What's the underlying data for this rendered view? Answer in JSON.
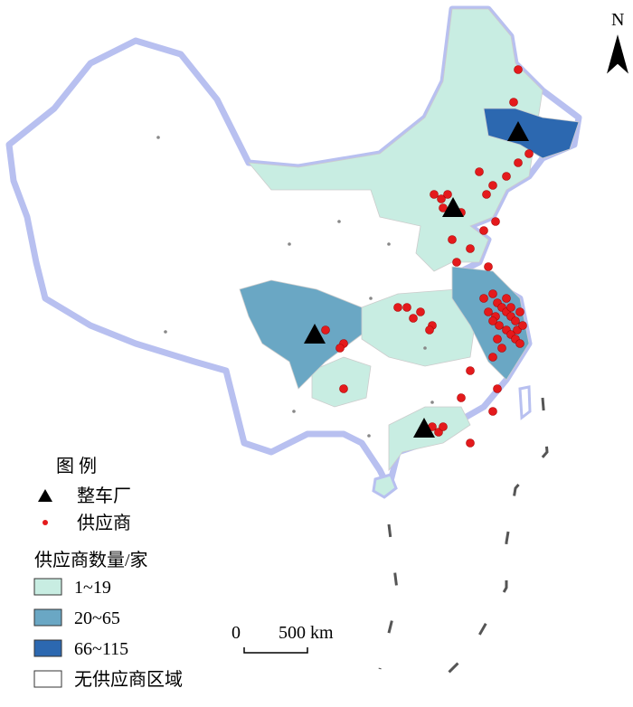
{
  "map": {
    "north": "N",
    "legend": {
      "title": "图 例",
      "symbols": [
        "整车厂",
        "供应商"
      ],
      "scale_title": "供应商数量/家",
      "classes": [
        {
          "label": "1~19",
          "color": "#c8ede2"
        },
        {
          "label": "20~65",
          "color": "#6aa7c4"
        },
        {
          "label": "66~115",
          "color": "#2c68b0"
        },
        {
          "label": "无供应商区域",
          "color": "#ffffff"
        }
      ]
    },
    "scale_bar": {
      "start": "0",
      "end": "500 km"
    }
  }
}
